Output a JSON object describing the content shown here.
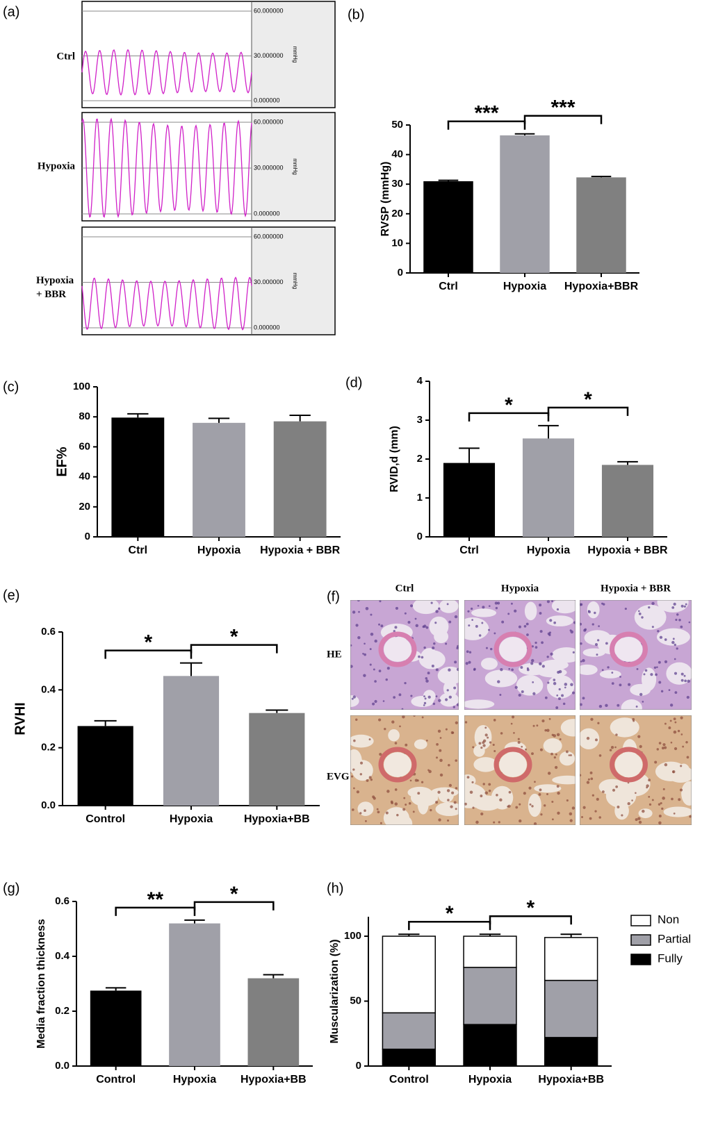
{
  "traces": {
    "label": "(a)",
    "groups": [
      [
        "Ctrl"
      ],
      [
        "Hypoxia"
      ],
      [
        "Hypoxia",
        "+ BBR"
      ]
    ],
    "scale": [
      "60.000000",
      "30.000000",
      "0.000000"
    ],
    "unit": "mmHg"
  },
  "histology": {
    "label": "(f)",
    "columns": [
      "Ctrl",
      "Hypoxia",
      "Hypoxia + BBR"
    ],
    "rows": [
      "HE",
      "EVG"
    ]
  },
  "chart_data": [
    {
      "type": "bar",
      "label": "(b)",
      "ylabel": "RVSP (mmHg)",
      "categories": [
        "Ctrl",
        "Hypoxia",
        "Hypoxia+BBR"
      ],
      "values": [
        31,
        46.5,
        32.3
      ],
      "errors": [
        0.3,
        0.5,
        0.3
      ],
      "colors": [
        "#000000",
        "#a0a0a8",
        "#808080"
      ],
      "ylim": [
        0,
        50
      ],
      "yticks": [
        0,
        10,
        20,
        30,
        40,
        50
      ],
      "significance": [
        "***",
        "***"
      ]
    },
    {
      "type": "bar",
      "label": "(c)",
      "ylabel": "EF%",
      "categories": [
        "Ctrl",
        "Hypoxia",
        "Hypoxia + BBR"
      ],
      "values": [
        79.5,
        76,
        77
      ],
      "errors": [
        2.5,
        3,
        4
      ],
      "colors": [
        "#000000",
        "#a0a0a8",
        "#808080"
      ],
      "ylim": [
        0,
        100
      ],
      "yticks": [
        0,
        20,
        40,
        60,
        80,
        100
      ],
      "significance": []
    },
    {
      "type": "bar",
      "label": "(d)",
      "ylabel": "RVID,d (mm)",
      "categories": [
        "Ctrl",
        "Hypoxia",
        "Hypoxia + BBR"
      ],
      "values": [
        1.9,
        2.53,
        1.85
      ],
      "errors": [
        0.38,
        0.33,
        0.08
      ],
      "colors": [
        "#000000",
        "#a0a0a8",
        "#808080"
      ],
      "ylim": [
        0,
        4
      ],
      "yticks": [
        0,
        1,
        2,
        3,
        4
      ],
      "significance": [
        "*",
        "*"
      ]
    },
    {
      "type": "bar",
      "label": "(e)",
      "ylabel": "RVHI",
      "categories": [
        "Control",
        "Hypoxia",
        "Hypoxia+BB"
      ],
      "values": [
        0.275,
        0.448,
        0.32
      ],
      "errors": [
        0.018,
        0.045,
        0.01
      ],
      "colors": [
        "#000000",
        "#a0a0a8",
        "#808080"
      ],
      "ylim": [
        0,
        0.6
      ],
      "yticks": [
        {
          "value": 0,
          "label": "0.0"
        },
        0.2,
        0.4,
        0.6
      ],
      "significance": [
        "*",
        "*"
      ]
    },
    {
      "type": "bar",
      "label": "(g)",
      "ylabel": "Media fraction thickness",
      "categories": [
        "Control",
        "Hypoxia",
        "Hypoxia+BB"
      ],
      "values": [
        0.275,
        0.52,
        0.32
      ],
      "errors": [
        0.01,
        0.012,
        0.013
      ],
      "colors": [
        "#000000",
        "#a0a0a8",
        "#808080"
      ],
      "ylim": [
        0,
        0.6
      ],
      "yticks": [
        {
          "value": 0,
          "label": "0.0"
        },
        0.2,
        0.4,
        0.6
      ],
      "significance": [
        "**",
        "*"
      ]
    },
    {
      "type": "stacked_bar",
      "label": "(h)",
      "ylabel": "Muscularization (%)",
      "categories": [
        "Control",
        "Hypoxia",
        "Hypoxia+BB"
      ],
      "series": [
        {
          "name": "Fully",
          "color": "#000000",
          "values": [
            13,
            32,
            22
          ],
          "errors": [
            1,
            1.5,
            1
          ]
        },
        {
          "name": "Partial",
          "color": "#a0a0a8",
          "values": [
            28,
            44,
            44
          ],
          "errors": [
            0.8,
            1,
            2
          ]
        },
        {
          "name": "Non",
          "color": "#ffffff",
          "values": [
            59,
            24,
            33
          ],
          "errors": [
            1.5,
            1.5,
            2.5
          ]
        }
      ],
      "ylim": [
        0,
        115
      ],
      "yticks": [
        0,
        50,
        100
      ],
      "significance": [
        "*",
        "*"
      ],
      "legend": "right"
    }
  ]
}
